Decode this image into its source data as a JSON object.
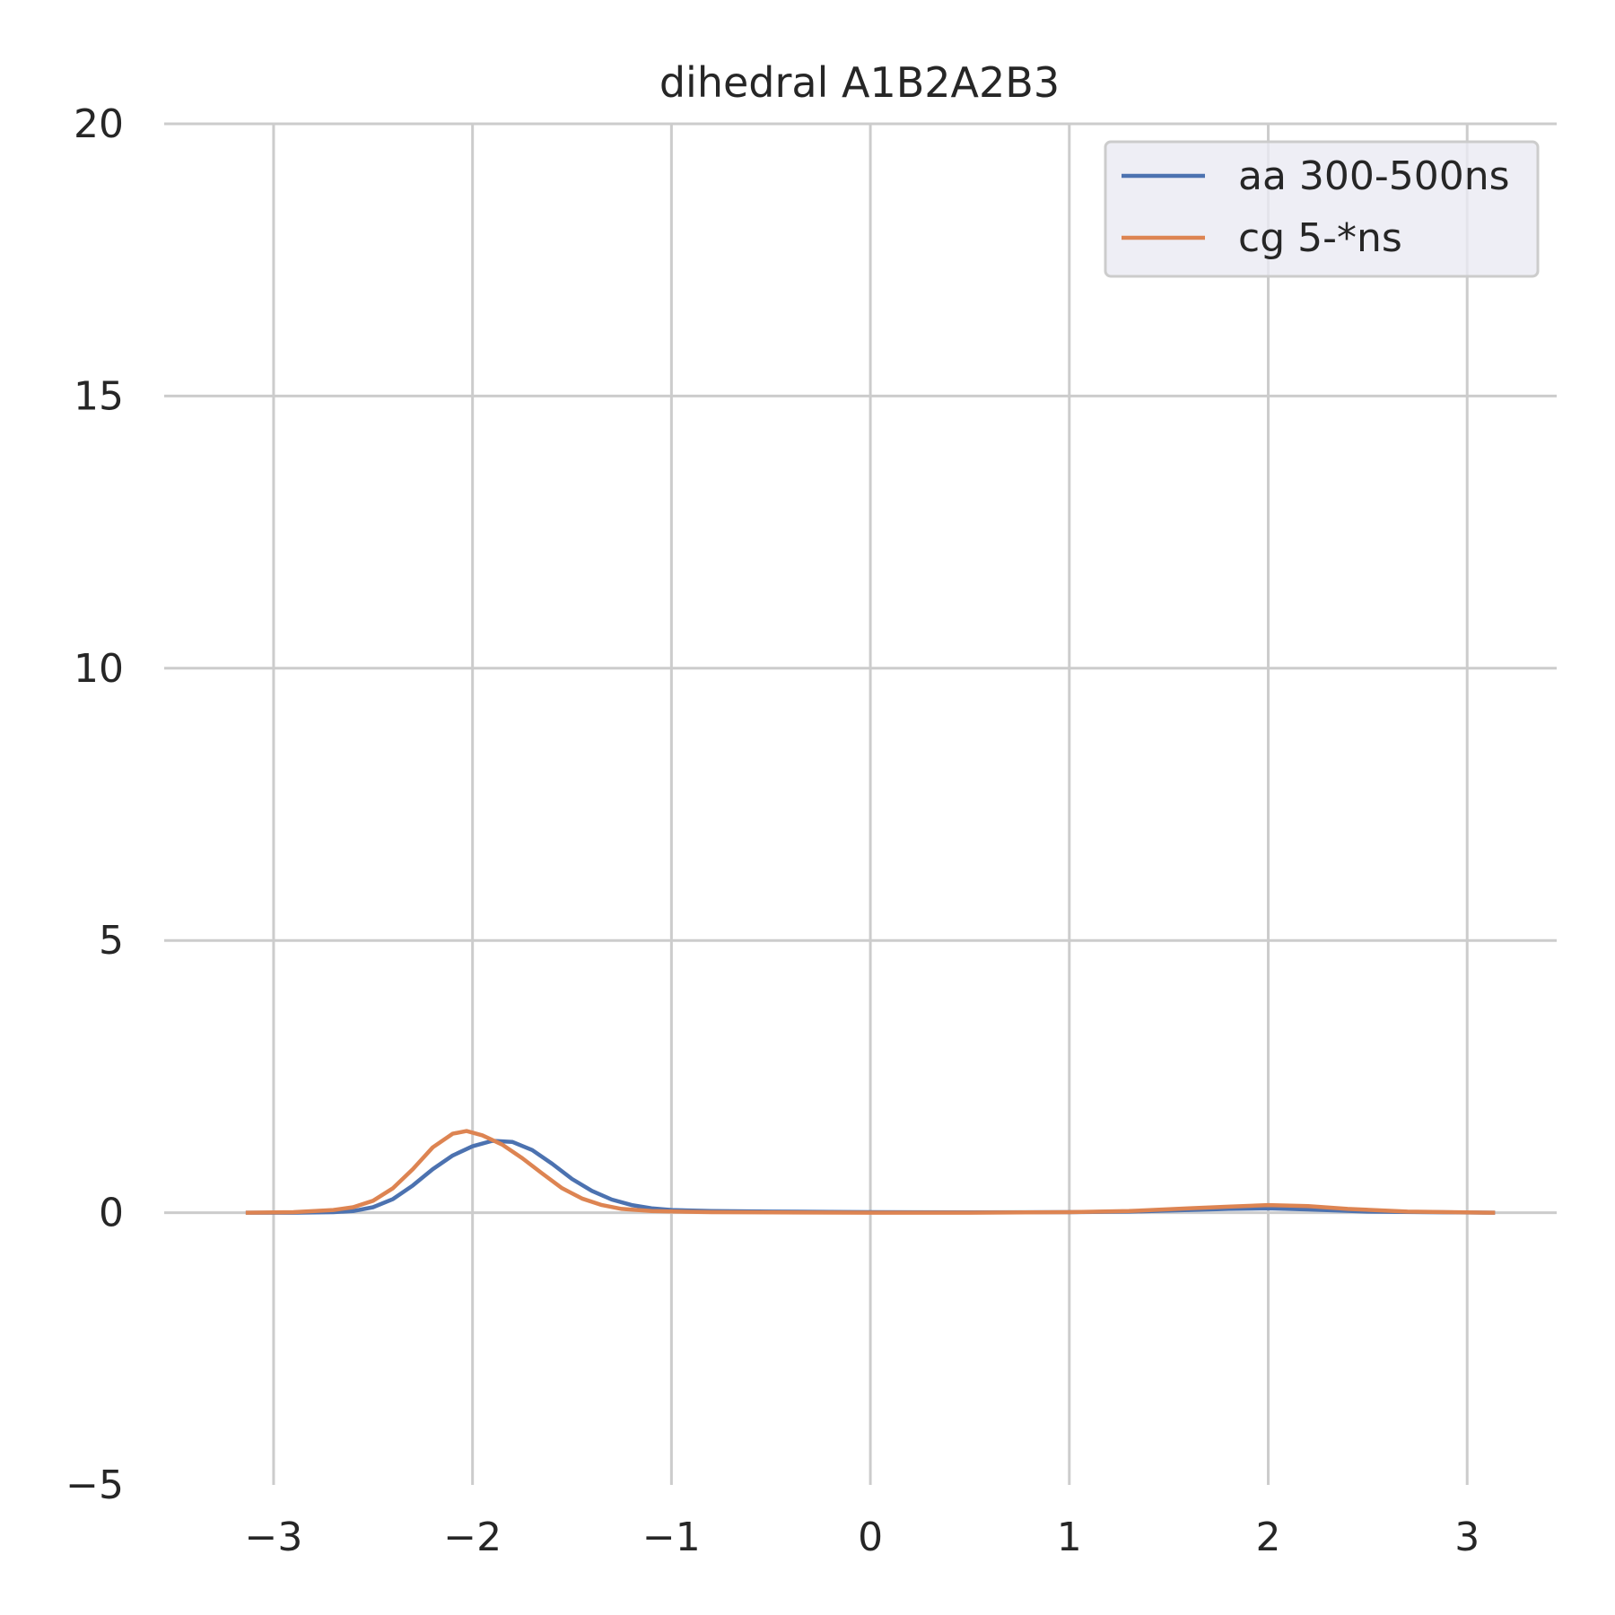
{
  "chart_data": {
    "type": "line",
    "title": "dihedral A1B2A2B3",
    "xlabel": "",
    "ylabel": "",
    "xlim": [
      -3.55,
      3.45
    ],
    "ylim": [
      -5,
      20
    ],
    "xticks": [
      -3,
      -2,
      -1,
      0,
      1,
      2,
      3
    ],
    "xtick_labels": [
      "−3",
      "−2",
      "−1",
      "0",
      "1",
      "2",
      "3"
    ],
    "yticks": [
      -5,
      0,
      5,
      10,
      15,
      20
    ],
    "ytick_labels": [
      "−5",
      "0",
      "5",
      "10",
      "15",
      "20"
    ],
    "grid": true,
    "legend_position": "top-right",
    "series": [
      {
        "name": "aa 300-500ns",
        "color": "#4c72b0",
        "points": [
          [
            -3.14,
            0.0
          ],
          [
            -2.9,
            0.0
          ],
          [
            -2.7,
            0.01
          ],
          [
            -2.6,
            0.03
          ],
          [
            -2.5,
            0.1
          ],
          [
            -2.4,
            0.25
          ],
          [
            -2.3,
            0.5
          ],
          [
            -2.2,
            0.8
          ],
          [
            -2.1,
            1.05
          ],
          [
            -2.0,
            1.22
          ],
          [
            -1.9,
            1.32
          ],
          [
            -1.8,
            1.3
          ],
          [
            -1.7,
            1.15
          ],
          [
            -1.6,
            0.9
          ],
          [
            -1.5,
            0.62
          ],
          [
            -1.4,
            0.4
          ],
          [
            -1.3,
            0.24
          ],
          [
            -1.2,
            0.14
          ],
          [
            -1.1,
            0.08
          ],
          [
            -1.0,
            0.05
          ],
          [
            -0.8,
            0.03
          ],
          [
            -0.5,
            0.02
          ],
          [
            -0.2,
            0.015
          ],
          [
            0.0,
            0.01
          ],
          [
            0.5,
            0.005
          ],
          [
            1.0,
            0.01
          ],
          [
            1.3,
            0.02
          ],
          [
            1.6,
            0.05
          ],
          [
            1.8,
            0.07
          ],
          [
            2.0,
            0.08
          ],
          [
            2.2,
            0.06
          ],
          [
            2.5,
            0.02
          ],
          [
            2.8,
            0.01
          ],
          [
            3.14,
            0.0
          ]
        ]
      },
      {
        "name": "cg 5-*ns",
        "color": "#dd8452",
        "points": [
          [
            -3.14,
            0.0
          ],
          [
            -2.9,
            0.01
          ],
          [
            -2.7,
            0.05
          ],
          [
            -2.6,
            0.1
          ],
          [
            -2.5,
            0.22
          ],
          [
            -2.4,
            0.45
          ],
          [
            -2.3,
            0.8
          ],
          [
            -2.2,
            1.2
          ],
          [
            -2.1,
            1.45
          ],
          [
            -2.03,
            1.5
          ],
          [
            -1.95,
            1.42
          ],
          [
            -1.85,
            1.25
          ],
          [
            -1.75,
            1.0
          ],
          [
            -1.65,
            0.72
          ],
          [
            -1.55,
            0.45
          ],
          [
            -1.45,
            0.26
          ],
          [
            -1.35,
            0.14
          ],
          [
            -1.25,
            0.07
          ],
          [
            -1.1,
            0.03
          ],
          [
            -0.8,
            0.01
          ],
          [
            -0.5,
            0.005
          ],
          [
            0.0,
            0.0
          ],
          [
            0.5,
            0.0
          ],
          [
            1.0,
            0.01
          ],
          [
            1.3,
            0.03
          ],
          [
            1.6,
            0.08
          ],
          [
            1.8,
            0.11
          ],
          [
            2.0,
            0.14
          ],
          [
            2.2,
            0.12
          ],
          [
            2.4,
            0.07
          ],
          [
            2.7,
            0.02
          ],
          [
            3.0,
            0.005
          ],
          [
            3.14,
            0.0
          ]
        ]
      }
    ]
  }
}
